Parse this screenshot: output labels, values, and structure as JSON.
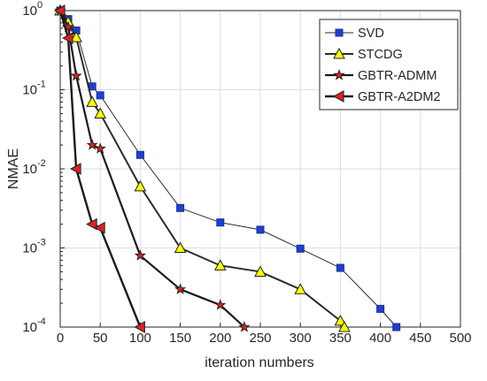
{
  "chart_data": {
    "type": "line",
    "title": "",
    "xlabel": "iteration numbers",
    "ylabel": "NMAE",
    "xlim": [
      0,
      500
    ],
    "ylim": [
      0.0001,
      1
    ],
    "yscale": "log",
    "grid": true,
    "legend_position": "top-right",
    "x_ticks": [
      "0",
      "50",
      "100",
      "150",
      "200",
      "250",
      "300",
      "350",
      "400",
      "450",
      "500"
    ],
    "y_ticks": [
      {
        "base": "10",
        "exp": "0"
      },
      {
        "base": "10",
        "exp": "-1"
      },
      {
        "base": "10",
        "exp": "-2"
      },
      {
        "base": "10",
        "exp": "-3"
      },
      {
        "base": "10",
        "exp": "-4"
      }
    ],
    "series": [
      {
        "name": "SVD",
        "marker": "square",
        "line_color": "#2b2b2b",
        "marker_color": "#1f3fcf",
        "x": [
          0,
          10,
          20,
          40,
          50,
          100,
          150,
          200,
          250,
          300,
          350,
          400,
          420
        ],
        "y": [
          1.0,
          0.78,
          0.56,
          0.11,
          0.085,
          0.015,
          0.0032,
          0.0021,
          0.0017,
          0.00098,
          0.00056,
          0.00017,
          0.0001
        ]
      },
      {
        "name": "STCDG",
        "marker": "triangle",
        "line_color": "#2b2b2b",
        "marker_color": "#ffff00",
        "x": [
          0,
          10,
          20,
          40,
          50,
          100,
          150,
          200,
          250,
          300,
          350,
          355
        ],
        "y": [
          1.0,
          0.72,
          0.46,
          0.07,
          0.05,
          0.006,
          0.001,
          0.0006,
          0.0005,
          0.0003,
          0.00012,
          0.0001
        ]
      },
      {
        "name": "GBTR-ADMM",
        "marker": "star",
        "line_color": "#1a1a1a",
        "marker_color": "#e02020",
        "x": [
          0,
          10,
          20,
          40,
          50,
          100,
          150,
          200,
          230
        ],
        "y": [
          1.0,
          0.62,
          0.15,
          0.02,
          0.018,
          0.0008,
          0.0003,
          0.00019,
          0.0001
        ]
      },
      {
        "name": "GBTR-A2DM2",
        "marker": "triangle-left",
        "line_color": "#1a1a1a",
        "marker_color": "#e02020",
        "x": [
          0,
          10,
          20,
          40,
          50,
          100
        ],
        "y": [
          1.0,
          0.45,
          0.01,
          0.002,
          0.0018,
          0.0001
        ]
      }
    ]
  }
}
